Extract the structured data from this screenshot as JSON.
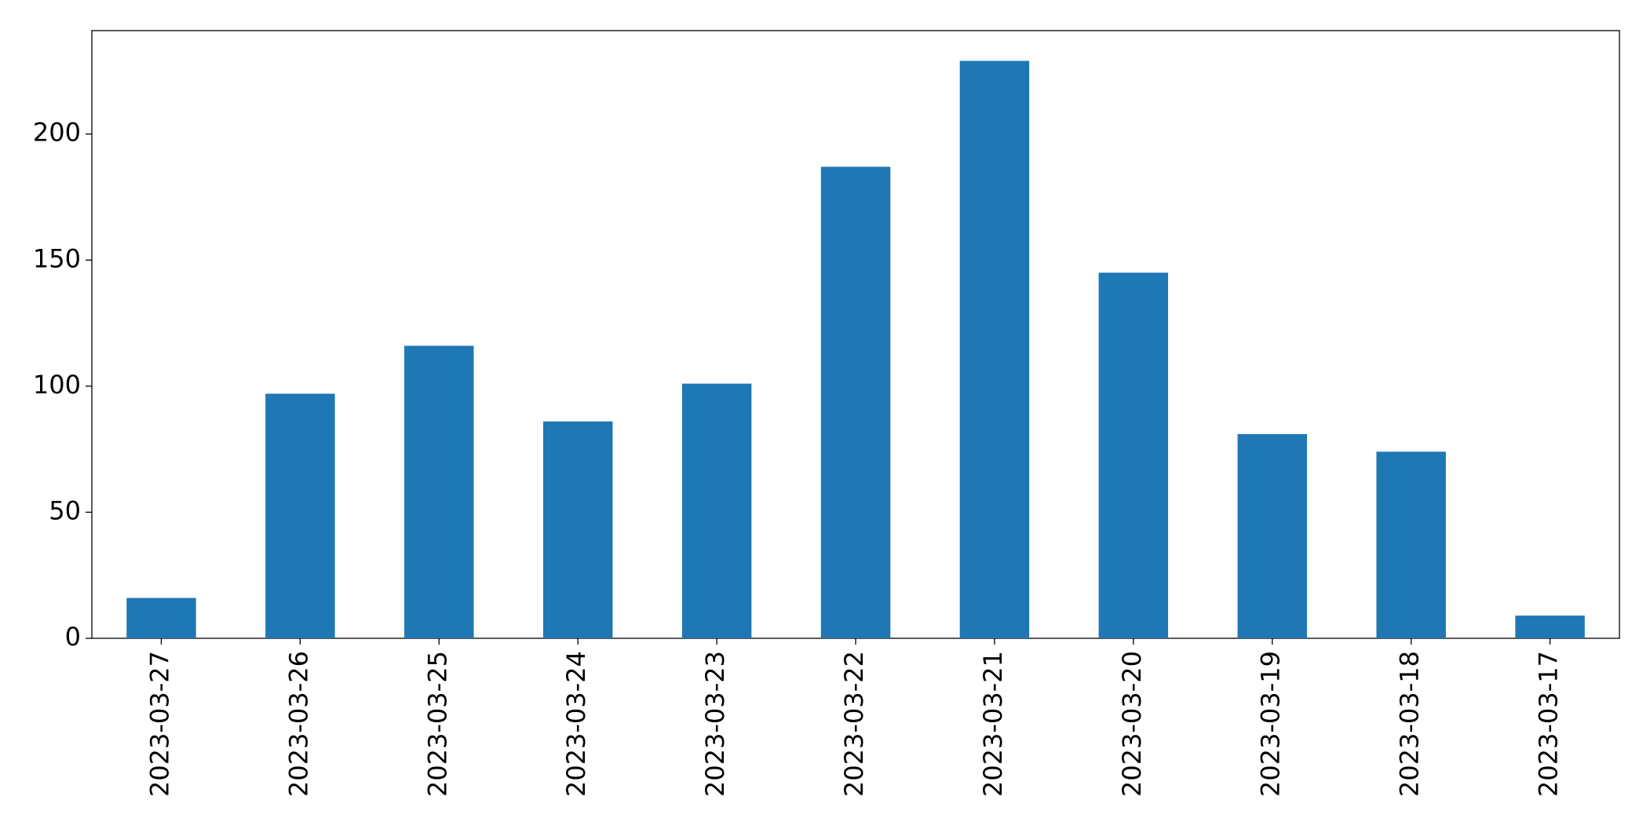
{
  "chart_data": {
    "type": "bar",
    "categories": [
      "2023-03-27",
      "2023-03-26",
      "2023-03-25",
      "2023-03-24",
      "2023-03-23",
      "2023-03-22",
      "2023-03-21",
      "2023-03-20",
      "2023-03-19",
      "2023-03-18",
      "2023-03-17"
    ],
    "values": [
      16,
      97,
      116,
      86,
      101,
      187,
      229,
      145,
      81,
      74,
      9
    ],
    "color": "#1f77b4",
    "ylim": [
      0,
      241
    ],
    "yticks": [
      0,
      50,
      100,
      150,
      200
    ],
    "grid": false
  }
}
